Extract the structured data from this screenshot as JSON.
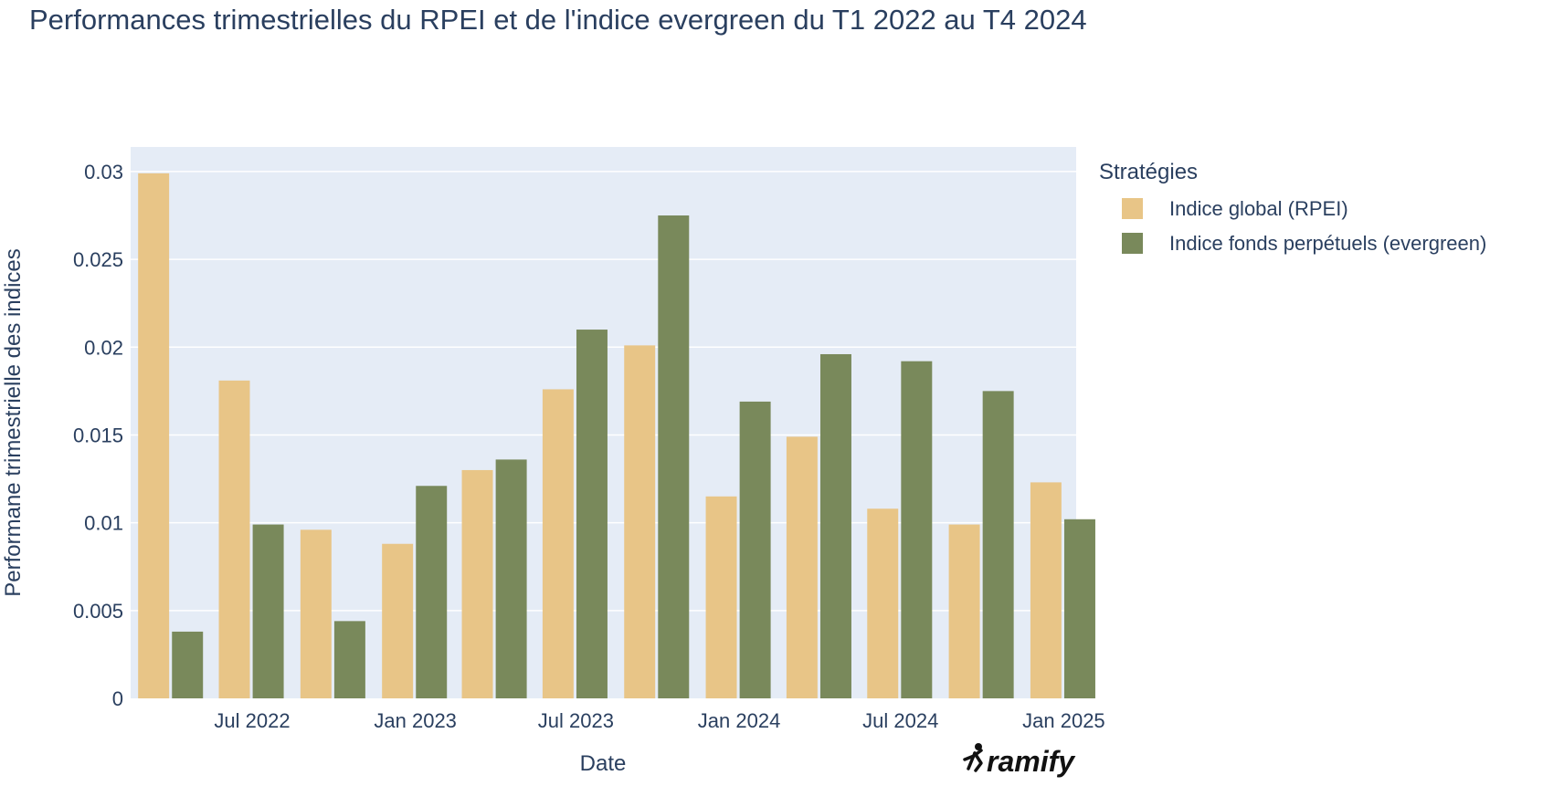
{
  "chart_data": {
    "type": "bar",
    "title": "Performances trimestrielles du RPEI et de l'indice evergreen du T1 2022 au T4 2024",
    "xlabel": "Date",
    "ylabel": "Performane trimestrielle des indices",
    "x_axis_type": "date",
    "x_range": [
      "2022-02-14",
      "2025-01-15"
    ],
    "x_ticks": [
      {
        "date": "2022-07-01",
        "label": "Jul 2022"
      },
      {
        "date": "2023-01-01",
        "label": "Jan 2023"
      },
      {
        "date": "2023-07-01",
        "label": "Jul 2023"
      },
      {
        "date": "2024-01-01",
        "label": "Jan 2024"
      },
      {
        "date": "2024-07-01",
        "label": "Jul 2024"
      },
      {
        "date": "2025-01-01",
        "label": "Jan 2025"
      }
    ],
    "ylim": [
      0,
      0.0314
    ],
    "y_ticks": [
      0,
      0.005,
      0.01,
      0.015,
      0.02,
      0.025,
      0.03
    ],
    "y_tick_labels": [
      "0",
      "0.005",
      "0.01",
      "0.015",
      "0.02",
      "0.025",
      "0.03"
    ],
    "grid": true,
    "barmode": "group",
    "legend_title": "Stratégies",
    "legend_position": "right",
    "x": [
      "2022-03-31",
      "2022-06-30",
      "2022-09-30",
      "2022-12-31",
      "2023-03-31",
      "2023-06-30",
      "2023-09-30",
      "2023-12-31",
      "2024-03-31",
      "2024-06-30",
      "2024-09-30",
      "2024-12-31"
    ],
    "series": [
      {
        "name": "Indice global (RPEI)",
        "color": "#e8c587",
        "values": [
          0.0299,
          0.0181,
          0.0096,
          0.0088,
          0.013,
          0.0176,
          0.0201,
          0.0115,
          0.0149,
          0.0108,
          0.0099,
          0.0123
        ]
      },
      {
        "name": "Indice fonds perpétuels (evergreen)",
        "color": "#79895b",
        "values": [
          0.0038,
          0.0099,
          0.0044,
          0.0121,
          0.0136,
          0.021,
          0.0275,
          0.0169,
          0.0196,
          0.0192,
          0.0175,
          0.0102
        ]
      }
    ]
  },
  "watermark": {
    "text": "ramify",
    "icon": "running-figure-icon"
  },
  "colors": {
    "plot_background": "#e5ecf6",
    "text": "#2a3f5f",
    "grid": "#ffffff"
  }
}
